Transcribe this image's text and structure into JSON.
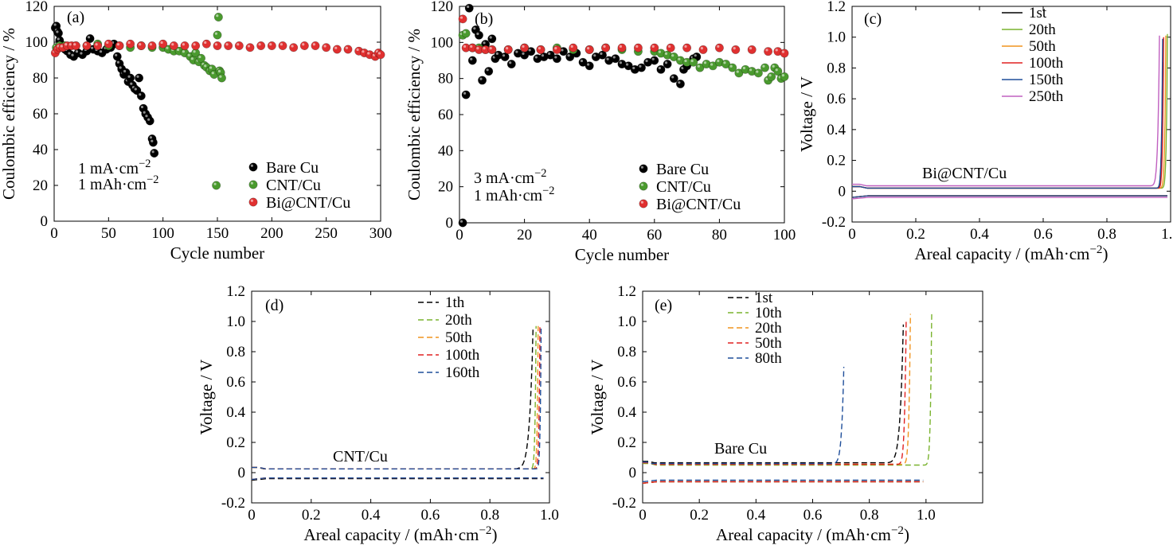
{
  "chart_data": [
    {
      "panel": "(a)",
      "type": "scatter",
      "xlabel": "Cycle number",
      "ylabel": "Coulombic efficiency / %",
      "xlim": [
        0,
        300
      ],
      "ylim": [
        0,
        120
      ],
      "xticks": [
        0,
        50,
        100,
        150,
        200,
        250,
        300
      ],
      "yticks": [
        0,
        20,
        40,
        60,
        80,
        100,
        120
      ],
      "annotations": [
        "1 mA·cm⁻²",
        "1 mAh·cm⁻²"
      ],
      "legend_position": "lower-right",
      "series": [
        {
          "name": "Bare Cu",
          "color": "#000000",
          "x": [
            1,
            2,
            3,
            4,
            5,
            6,
            8,
            10,
            12,
            15,
            18,
            22,
            26,
            30,
            33,
            36,
            40,
            44,
            48,
            52,
            55,
            58,
            60,
            62,
            64,
            66,
            68,
            70,
            72,
            74,
            76,
            78,
            80,
            82,
            84,
            86,
            88,
            90,
            91,
            92
          ],
          "y": [
            108,
            109,
            106,
            105,
            101,
            99,
            97,
            96,
            95,
            93,
            92,
            94,
            93,
            95,
            102,
            96,
            95,
            94,
            96,
            97,
            99,
            92,
            88,
            85,
            82,
            83,
            78,
            80,
            76,
            74,
            73,
            80,
            70,
            63,
            60,
            58,
            56,
            46,
            44,
            38
          ]
        },
        {
          "name": "CNT/Cu",
          "color": "#4a9a2e",
          "x": [
            2,
            5,
            10,
            20,
            30,
            40,
            50,
            60,
            70,
            80,
            90,
            100,
            105,
            110,
            115,
            120,
            125,
            128,
            130,
            133,
            135,
            138,
            140,
            143,
            145,
            147,
            149,
            150,
            151,
            152,
            153,
            154
          ],
          "y": [
            97,
            98,
            98,
            98,
            98,
            99,
            98,
            98,
            97,
            98,
            97,
            97,
            96,
            95,
            95,
            94,
            92,
            90,
            94,
            89,
            91,
            87,
            86,
            84,
            85,
            82,
            20,
            104,
            114,
            84,
            83,
            80
          ]
        },
        {
          "name": "Bi@CNT/Cu",
          "color": "#e03030",
          "x": [
            1,
            3,
            5,
            8,
            12,
            16,
            20,
            30,
            40,
            50,
            60,
            70,
            80,
            90,
            100,
            110,
            120,
            130,
            140,
            150,
            160,
            170,
            180,
            190,
            200,
            210,
            220,
            230,
            240,
            250,
            260,
            270,
            280,
            285,
            290,
            295,
            298,
            300
          ],
          "y": [
            94,
            96,
            97,
            97,
            98,
            98,
            98,
            98,
            98,
            99,
            98,
            99,
            98,
            98,
            99,
            98,
            98,
            98,
            99,
            98,
            98,
            98,
            97,
            98,
            98,
            98,
            97,
            98,
            98,
            97,
            96,
            96,
            95,
            94,
            93,
            92,
            94,
            93
          ]
        }
      ]
    },
    {
      "panel": "(b)",
      "type": "scatter",
      "xlabel": "Cycle number",
      "ylabel": "Coulombic efficiency / %",
      "xlim": [
        0,
        100
      ],
      "ylim": [
        0,
        120
      ],
      "xticks": [
        0,
        20,
        40,
        60,
        80,
        100
      ],
      "yticks": [
        0,
        20,
        40,
        60,
        80,
        100,
        120
      ],
      "annotations": [
        "3 mA·cm⁻²",
        "1 mAh·cm⁻²"
      ],
      "legend_position": "lower-right",
      "series": [
        {
          "name": "Bare Cu",
          "color": "#000000",
          "x": [
            1,
            2,
            3,
            4,
            5,
            6,
            7,
            8,
            9,
            10,
            11,
            12,
            14,
            16,
            18,
            20,
            22,
            24,
            26,
            28,
            30,
            32,
            34,
            36,
            38,
            40,
            42,
            44,
            46,
            48,
            50,
            52,
            54,
            56,
            58,
            60,
            62,
            64,
            66,
            68,
            69,
            70,
            72,
            73
          ],
          "y": [
            0,
            71,
            119,
            90,
            107,
            104,
            79,
            99,
            84,
            102,
            91,
            93,
            92,
            88,
            94,
            93,
            95,
            91,
            92,
            93,
            91,
            95,
            92,
            94,
            89,
            87,
            92,
            93,
            90,
            91,
            88,
            87,
            85,
            86,
            89,
            90,
            85,
            88,
            80,
            77,
            85,
            87,
            91,
            92
          ]
        },
        {
          "name": "CNT/Cu",
          "color": "#4a9a2e",
          "x": [
            1,
            2,
            4,
            6,
            8,
            10,
            15,
            20,
            25,
            30,
            35,
            40,
            45,
            50,
            55,
            60,
            62,
            64,
            66,
            68,
            70,
            72,
            74,
            76,
            78,
            80,
            82,
            84,
            86,
            88,
            90,
            92,
            94,
            95,
            96,
            97,
            98,
            99,
            100
          ],
          "y": [
            104,
            105,
            97,
            97,
            96,
            96,
            96,
            97,
            96,
            97,
            96,
            96,
            97,
            96,
            95,
            95,
            94,
            93,
            92,
            90,
            89,
            89,
            86,
            88,
            87,
            89,
            88,
            86,
            83,
            85,
            84,
            83,
            86,
            79,
            81,
            86,
            84,
            80,
            81
          ]
        },
        {
          "name": "Bi@CNT/Cu",
          "color": "#e03030",
          "x": [
            1,
            2,
            4,
            6,
            8,
            10,
            15,
            20,
            25,
            30,
            35,
            40,
            45,
            50,
            55,
            60,
            65,
            70,
            75,
            80,
            85,
            90,
            95,
            98,
            100
          ],
          "y": [
            113,
            97,
            97,
            96,
            96,
            96,
            96,
            97,
            96,
            96,
            97,
            96,
            97,
            97,
            97,
            97,
            97,
            97,
            96,
            97,
            96,
            96,
            95,
            95,
            94
          ]
        }
      ]
    },
    {
      "panel": "(c)",
      "type": "line",
      "xlabel": "Areal capacity / (mAh·cm⁻²)",
      "ylabel": "Voltage / V",
      "xlim": [
        0,
        1.0
      ],
      "ylim": [
        -0.2,
        1.2
      ],
      "xticks": [
        0,
        0.2,
        0.4,
        0.6,
        0.8,
        1.0
      ],
      "yticks": [
        -0.2,
        0,
        0.2,
        0.4,
        0.6,
        0.8,
        1.0,
        1.2
      ],
      "annotations": [
        "Bi@CNT/Cu"
      ],
      "legend_position": "top-right",
      "line_style": "solid",
      "series": [
        {
          "name": "1st",
          "color": "#000000",
          "end_x": 0.975,
          "max_v": 0.84,
          "plateau": 0.02,
          "knee": 0.945,
          "strip_v": -0.03,
          "strip_end": 0.99
        },
        {
          "name": "20th",
          "color": "#7ab32e",
          "end_x": 0.99,
          "max_v": 1.02,
          "plateau": 0.02,
          "knee": 0.96,
          "strip_v": -0.03,
          "strip_end": 0.99
        },
        {
          "name": "50th",
          "color": "#f0941f",
          "end_x": 0.985,
          "max_v": 1.01,
          "plateau": 0.02,
          "knee": 0.955,
          "strip_v": -0.03,
          "strip_end": 0.99
        },
        {
          "name": "100th",
          "color": "#e02020",
          "end_x": 0.978,
          "max_v": 1.0,
          "plateau": 0.02,
          "knee": 0.95,
          "strip_v": -0.03,
          "strip_end": 0.99
        },
        {
          "name": "150th",
          "color": "#1f4e9a",
          "end_x": 0.975,
          "max_v": 0.99,
          "plateau": 0.02,
          "knee": 0.945,
          "strip_v": -0.03,
          "strip_end": 0.99
        },
        {
          "name": "250th",
          "color": "#c060c0",
          "end_x": 0.965,
          "max_v": 1.01,
          "plateau": 0.035,
          "knee": 0.92,
          "strip_v": -0.04,
          "strip_end": 0.99
        }
      ]
    },
    {
      "panel": "(d)",
      "type": "line",
      "xlabel": "Areal capacity / (mAh·cm⁻²)",
      "ylabel": "Voltage / V",
      "xlim": [
        0,
        1.0
      ],
      "ylim": [
        -0.2,
        1.2
      ],
      "xticks": [
        0,
        0.2,
        0.4,
        0.6,
        0.8,
        1.0
      ],
      "yticks": [
        -0.2,
        0,
        0.2,
        0.4,
        0.6,
        0.8,
        1.0,
        1.2
      ],
      "annotations": [
        "CNT/Cu"
      ],
      "legend_position": "top-right",
      "line_style": "dashed",
      "series": [
        {
          "name": "1th",
          "color": "#000000",
          "end_x": 0.945,
          "max_v": 0.96,
          "plateau": 0.025,
          "knee": 0.84,
          "strip_v": -0.04,
          "strip_end": 0.98
        },
        {
          "name": "20th",
          "color": "#7ab32e",
          "end_x": 0.955,
          "max_v": 0.97,
          "plateau": 0.025,
          "knee": 0.925,
          "strip_v": -0.035,
          "strip_end": 0.98
        },
        {
          "name": "50th",
          "color": "#f0941f",
          "end_x": 0.962,
          "max_v": 0.97,
          "plateau": 0.025,
          "knee": 0.935,
          "strip_v": -0.035,
          "strip_end": 0.98
        },
        {
          "name": "100th",
          "color": "#e02020",
          "end_x": 0.968,
          "max_v": 0.97,
          "plateau": 0.025,
          "knee": 0.94,
          "strip_v": -0.035,
          "strip_end": 0.98
        },
        {
          "name": "160th",
          "color": "#1f4e9a",
          "end_x": 0.972,
          "max_v": 0.97,
          "plateau": 0.025,
          "knee": 0.945,
          "strip_v": -0.035,
          "strip_end": 0.98
        }
      ]
    },
    {
      "panel": "(e)",
      "type": "line",
      "xlabel": "Areal capacity / (mAh·cm⁻²)",
      "ylabel": "Voltage / V",
      "xlim": [
        0,
        1.2
      ],
      "ylim": [
        -0.2,
        1.2
      ],
      "xticks": [
        0,
        0.2,
        0.4,
        0.6,
        0.8,
        1.0
      ],
      "yticks": [
        -0.2,
        0,
        0.2,
        0.4,
        0.6,
        0.8,
        1.0,
        1.2
      ],
      "annotations": [
        "Bare Cu"
      ],
      "legend_position": "top-left",
      "line_style": "dashed",
      "series": [
        {
          "name": "1st",
          "color": "#000000",
          "end_x": 0.92,
          "max_v": 0.98,
          "plateau": 0.065,
          "knee": 0.82,
          "strip_v": -0.06,
          "strip_end": 0.99
        },
        {
          "name": "10th",
          "color": "#7ab32e",
          "end_x": 1.02,
          "max_v": 1.05,
          "plateau": 0.05,
          "knee": 0.98,
          "strip_v": -0.06,
          "strip_end": 0.99
        },
        {
          "name": "20th",
          "color": "#f0941f",
          "end_x": 0.945,
          "max_v": 1.05,
          "plateau": 0.055,
          "knee": 0.9,
          "strip_v": -0.06,
          "strip_end": 0.99
        },
        {
          "name": "50th",
          "color": "#e02020",
          "end_x": 0.93,
          "max_v": 1.0,
          "plateau": 0.055,
          "knee": 0.88,
          "strip_v": -0.06,
          "strip_end": 0.99
        },
        {
          "name": "80th",
          "color": "#1f4e9a",
          "end_x": 0.71,
          "max_v": 0.7,
          "plateau": 0.06,
          "knee": 0.64,
          "strip_v": -0.05,
          "strip_end": 0.99
        }
      ]
    }
  ]
}
